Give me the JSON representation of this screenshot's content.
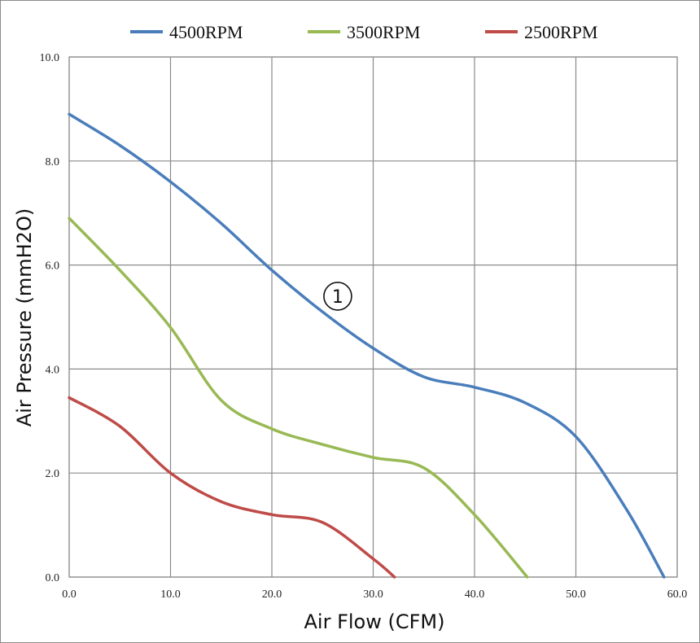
{
  "chart_data": {
    "type": "line",
    "title": "",
    "xlabel": "Air Flow (CFM)",
    "ylabel": "Air Pressure (mmH2O)",
    "xlim": [
      0,
      60
    ],
    "ylim": [
      0,
      10
    ],
    "xticks": [
      "0.0",
      "10.0",
      "20.0",
      "30.0",
      "40.0",
      "50.0",
      "60.0"
    ],
    "yticks": [
      "0.0",
      "2.0",
      "4.0",
      "6.0",
      "8.0",
      "10.0"
    ],
    "grid": true,
    "legend_position": "top",
    "series": [
      {
        "name": "4500RPM",
        "color": "#4A7EBB",
        "x": [
          0,
          5,
          10,
          15,
          20,
          25,
          30,
          35,
          40,
          45,
          50,
          55,
          58.7
        ],
        "y": [
          8.9,
          8.3,
          7.6,
          6.8,
          5.9,
          5.1,
          4.4,
          3.85,
          3.65,
          3.35,
          2.7,
          1.3,
          0
        ]
      },
      {
        "name": "3500RPM",
        "color": "#98B954",
        "x": [
          0,
          5,
          10,
          15,
          20,
          25,
          30,
          35,
          40,
          45.2
        ],
        "y": [
          6.9,
          5.9,
          4.8,
          3.4,
          2.85,
          2.55,
          2.3,
          2.1,
          1.2,
          0
        ]
      },
      {
        "name": "2500RPM",
        "color": "#BE4B48",
        "x": [
          0,
          5,
          10,
          15,
          20,
          25,
          30,
          32.1
        ],
        "y": [
          3.45,
          2.9,
          2.0,
          1.45,
          1.2,
          1.05,
          0.35,
          0
        ]
      }
    ],
    "annotations": [
      {
        "text": "1",
        "style": "circled",
        "x": 26.5,
        "y": 5.4
      }
    ]
  }
}
